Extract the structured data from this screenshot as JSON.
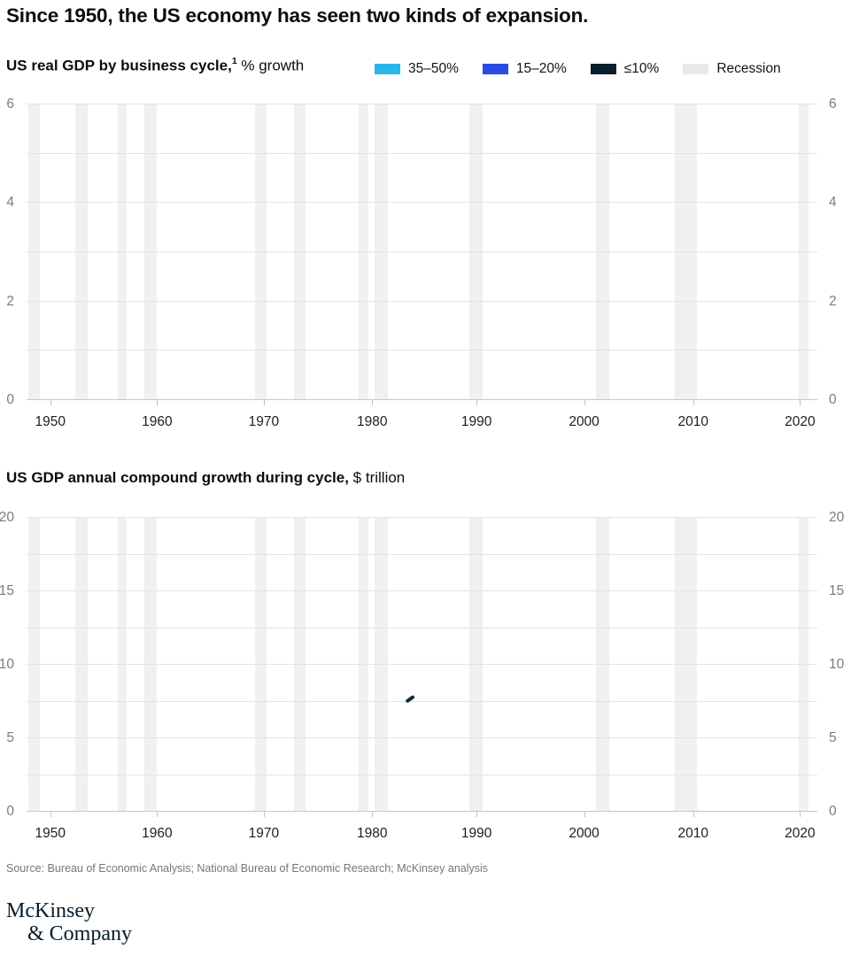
{
  "page_title": "Since 1950, the US economy has seen two kinds of expansion.",
  "colors": {
    "cyan": "#2cb5e8",
    "blue": "#2b4be4",
    "navy": "#0a1e2c",
    "recession_swatch": "#e9e9e9",
    "recession_band": "#f0f0f0",
    "gridline": "#e4e4e4",
    "baseline": "#c7c7c7",
    "mark_navy": "#112a3a",
    "logo_navy": "#051c2c"
  },
  "chart1": {
    "title_bold": "US real GDP by business cycle,",
    "title_sup": "1",
    "title_unit": " % growth"
  },
  "chart2": {
    "title_bold": "US GDP annual compound growth during cycle,",
    "title_unit": " $ trillion"
  },
  "legend": {
    "items": [
      {
        "label": "35–50%",
        "color_key": "cyan"
      },
      {
        "label": "15–20%",
        "color_key": "blue"
      },
      {
        "label": "≤10%",
        "color_key": "navy"
      },
      {
        "label": "Recession",
        "color_key": "recession_swatch"
      }
    ]
  },
  "recessions": [
    {
      "years": "1948–49",
      "left_pct": 0.2,
      "width_pct": 1.5
    },
    {
      "years": "1953–54",
      "left_pct": 6.2,
      "width_pct": 1.5
    },
    {
      "years": "1957–58",
      "left_pct": 11.5,
      "width_pct": 1.2
    },
    {
      "years": "1960–61",
      "left_pct": 14.9,
      "width_pct": 1.6
    },
    {
      "years": "1969–70",
      "left_pct": 28.9,
      "width_pct": 1.4
    },
    {
      "years": "1973–75",
      "left_pct": 33.8,
      "width_pct": 1.5
    },
    {
      "years": "1980",
      "left_pct": 42.0,
      "width_pct": 1.2
    },
    {
      "years": "1981–82",
      "left_pct": 44.0,
      "width_pct": 1.7
    },
    {
      "years": "1990–91",
      "left_pct": 56.0,
      "width_pct": 1.7
    },
    {
      "years": "2001",
      "left_pct": 72.0,
      "width_pct": 1.7
    },
    {
      "years": "2007–09",
      "left_pct": 82.0,
      "width_pct": 2.8
    },
    {
      "years": "2020",
      "left_pct": 97.6,
      "width_pct": 1.3
    }
  ],
  "chart_data": [
    {
      "type": "bar",
      "title": "US real GDP by business cycle, % growth",
      "ylabel": "% growth",
      "ylim": [
        0,
        6
      ],
      "ytick_labels": [
        "0",
        "2",
        "4",
        "6"
      ],
      "ytick_values": [
        0,
        2,
        4,
        6
      ],
      "gridline_values": [
        0,
        1,
        2,
        3,
        4,
        5,
        6
      ],
      "x_tick_labels": [
        "1950",
        "1960",
        "1970",
        "1980",
        "1990",
        "2000",
        "2010",
        "2020"
      ],
      "x_tick_pct": [
        3.0,
        16.5,
        30.0,
        43.7,
        56.9,
        70.5,
        84.3,
        97.8
      ],
      "grid": true,
      "legend_position": "top-right",
      "series": [],
      "no_data_rendered": true,
      "recession_shading": true
    },
    {
      "type": "line",
      "title": "US GDP annual compound growth during cycle, $ trillion",
      "ylabel": "$ trillion",
      "ylim": [
        0,
        20
      ],
      "ytick_labels": [
        "0",
        "5",
        "10",
        "15",
        "20"
      ],
      "ytick_values": [
        0,
        5,
        10,
        15,
        20
      ],
      "gridline_values": [
        0,
        2.5,
        5,
        7.5,
        10,
        12.5,
        15,
        17.5,
        20
      ],
      "x_tick_labels": [
        "1950",
        "1960",
        "1970",
        "1980",
        "1990",
        "2000",
        "2010",
        "2020"
      ],
      "x_tick_pct": [
        3.0,
        16.5,
        30.0,
        43.7,
        56.9,
        70.5,
        84.3,
        97.8
      ],
      "grid": true,
      "series": [],
      "no_data_rendered": true,
      "line_start_mark": {
        "x_pct": 48.5,
        "value": 7.7
      },
      "recession_shading": true
    }
  ],
  "source": "Source: Bureau of Economic Analysis; National Bureau of Economic Research; McKinsey analysis",
  "logo": {
    "line1": "McKinsey",
    "line2": "& Company"
  }
}
